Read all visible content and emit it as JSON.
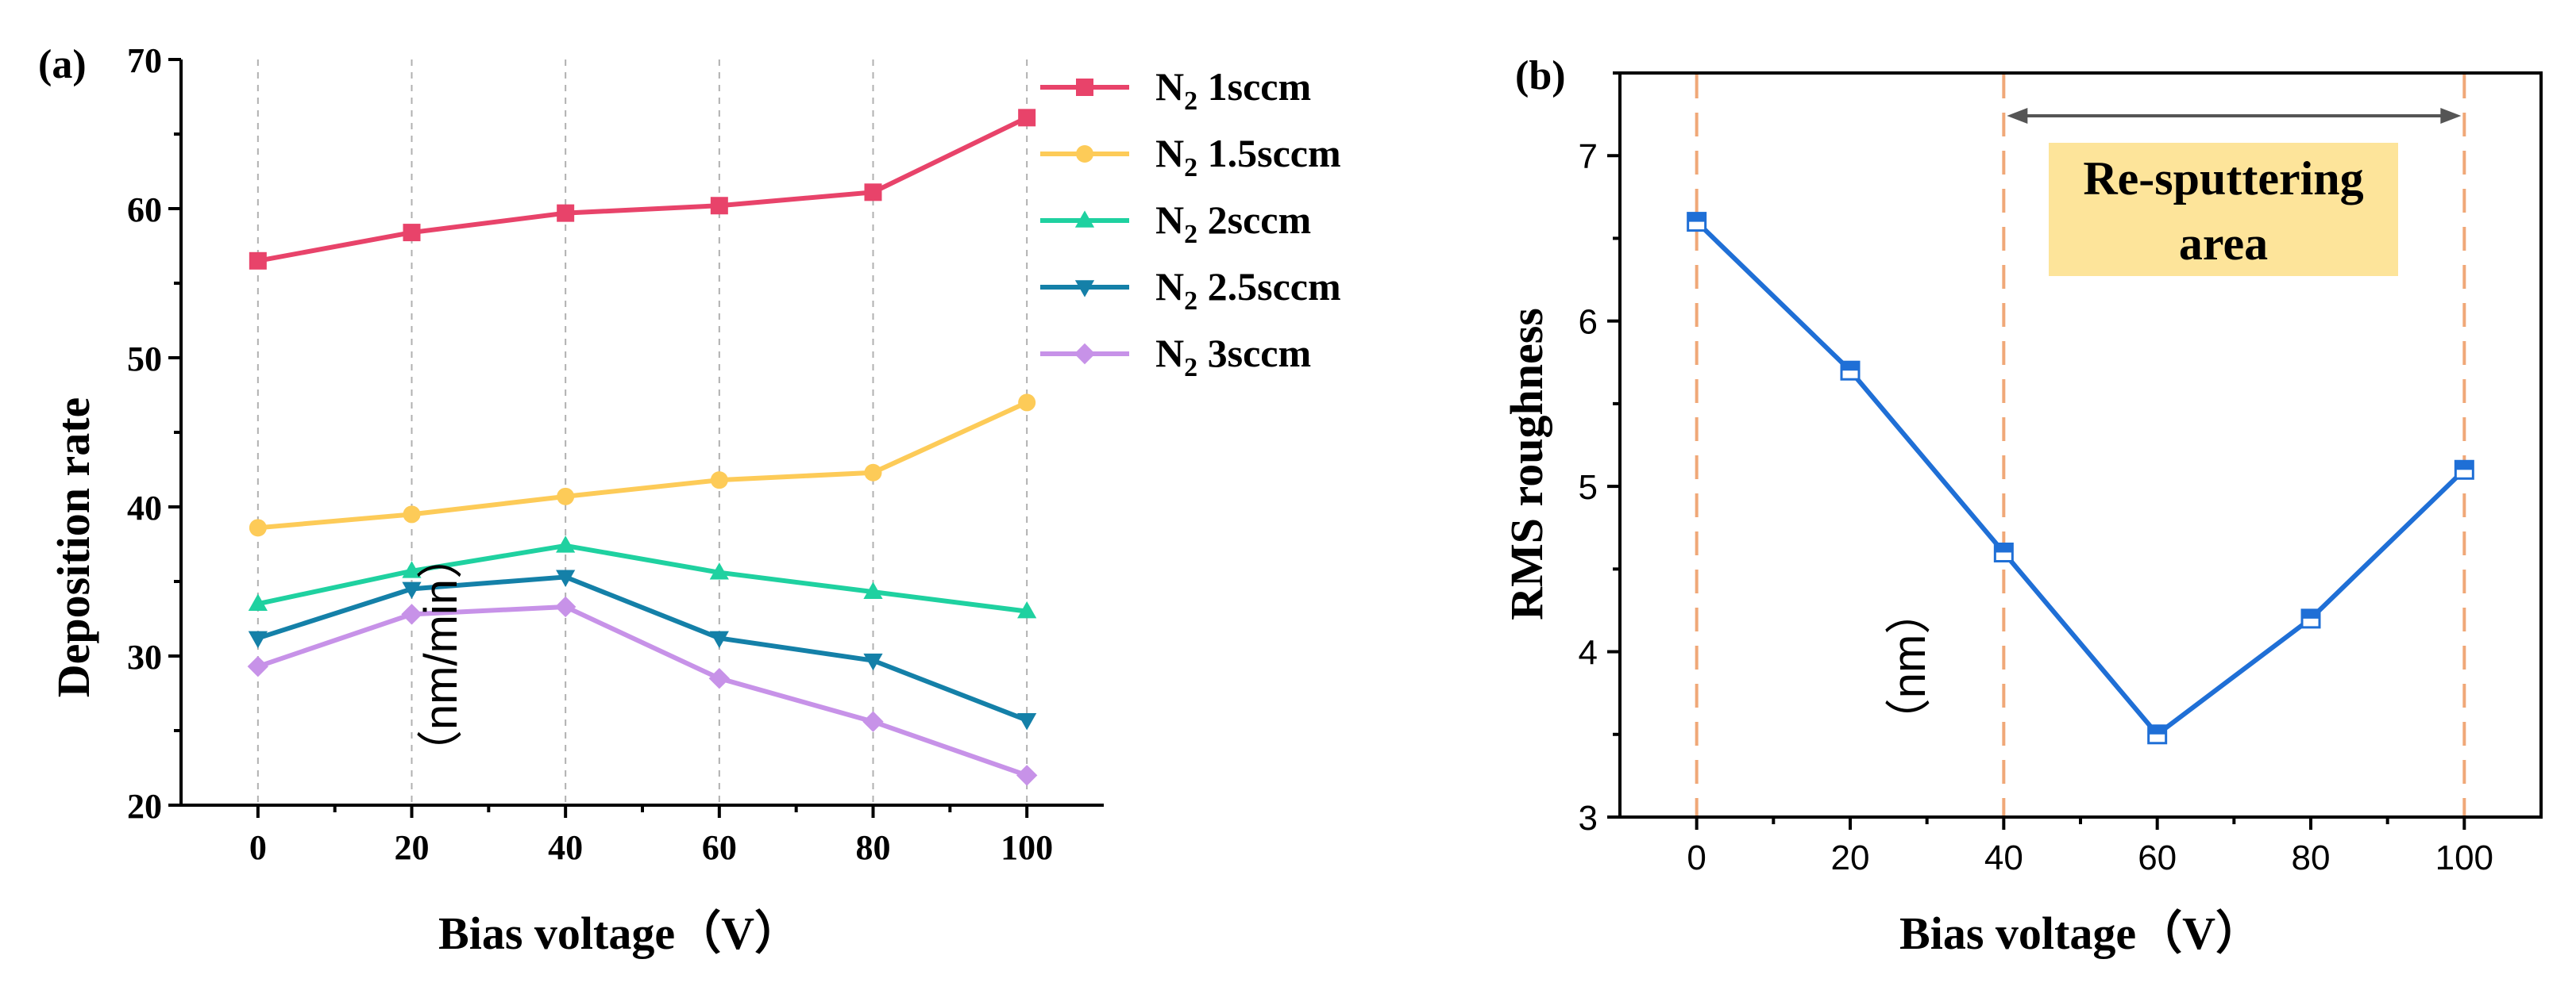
{
  "chart_data": [
    {
      "type": "line",
      "panel_label": "(a)",
      "xlabel": "Bias voltage（V）",
      "ylabel": "Deposition rate",
      "ylabel_units": "（nm/min）",
      "x": [
        0,
        20,
        40,
        60,
        80,
        100
      ],
      "xlim": [
        -10,
        110
      ],
      "ylim": [
        20,
        70
      ],
      "xticks": [
        "0",
        "20",
        "40",
        "60",
        "80",
        "100"
      ],
      "yticks": [
        "20",
        "30",
        "40",
        "50",
        "60",
        "70"
      ],
      "grid": "vertical dashed",
      "legend": "top-right",
      "series": [
        {
          "name": "N",
          "sub": "2",
          "suffix": " 1sccm",
          "color": "#e8436a",
          "marker": "square",
          "values": [
            56.5,
            58.4,
            59.7,
            60.2,
            61.1,
            66.1
          ]
        },
        {
          "name": "N",
          "sub": "2",
          "suffix": " 1.5sccm",
          "color": "#fdcb58",
          "marker": "circle",
          "values": [
            38.6,
            39.5,
            40.7,
            41.8,
            42.3,
            47.0
          ]
        },
        {
          "name": "N",
          "sub": "2",
          "suffix": " 2sccm",
          "color": "#1fd1a0",
          "marker": "triangle-up",
          "values": [
            33.5,
            35.7,
            37.4,
            35.6,
            34.3,
            33.0
          ]
        },
        {
          "name": "N",
          "sub": "2",
          "suffix": " 2.5sccm",
          "color": "#1480a8",
          "marker": "triangle-down",
          "values": [
            31.2,
            34.5,
            35.3,
            31.2,
            29.7,
            25.7
          ]
        },
        {
          "name": "N",
          "sub": "2",
          "suffix": " 3sccm",
          "color": "#c792e8",
          "marker": "diamond",
          "values": [
            29.3,
            32.8,
            33.3,
            28.5,
            25.6,
            22.0
          ]
        }
      ]
    },
    {
      "type": "line",
      "panel_label": "(b)",
      "xlabel": "Bias voltage（V）",
      "ylabel": "RMS roughness",
      "ylabel_units": "（nm）",
      "x": [
        0,
        20,
        40,
        60,
        80,
        100
      ],
      "xlim": [
        -10,
        110
      ],
      "ylim": [
        3,
        7.5
      ],
      "xticks": [
        "0",
        "20",
        "40",
        "60",
        "80",
        "100"
      ],
      "yticks": [
        "3",
        "4",
        "5",
        "6",
        "7"
      ],
      "series": [
        {
          "name": "RMS roughness",
          "color": "#1f6fd6",
          "marker": "half-filled-square",
          "values": [
            6.6,
            5.7,
            4.6,
            3.5,
            4.2,
            5.1
          ]
        }
      ],
      "vertical_dashed_lines_at_x": [
        0,
        40,
        100
      ],
      "annotation": {
        "line1": "Re-sputtering",
        "line2": "area",
        "box_color": "#fde49a",
        "span_x": [
          40,
          100
        ]
      }
    }
  ]
}
